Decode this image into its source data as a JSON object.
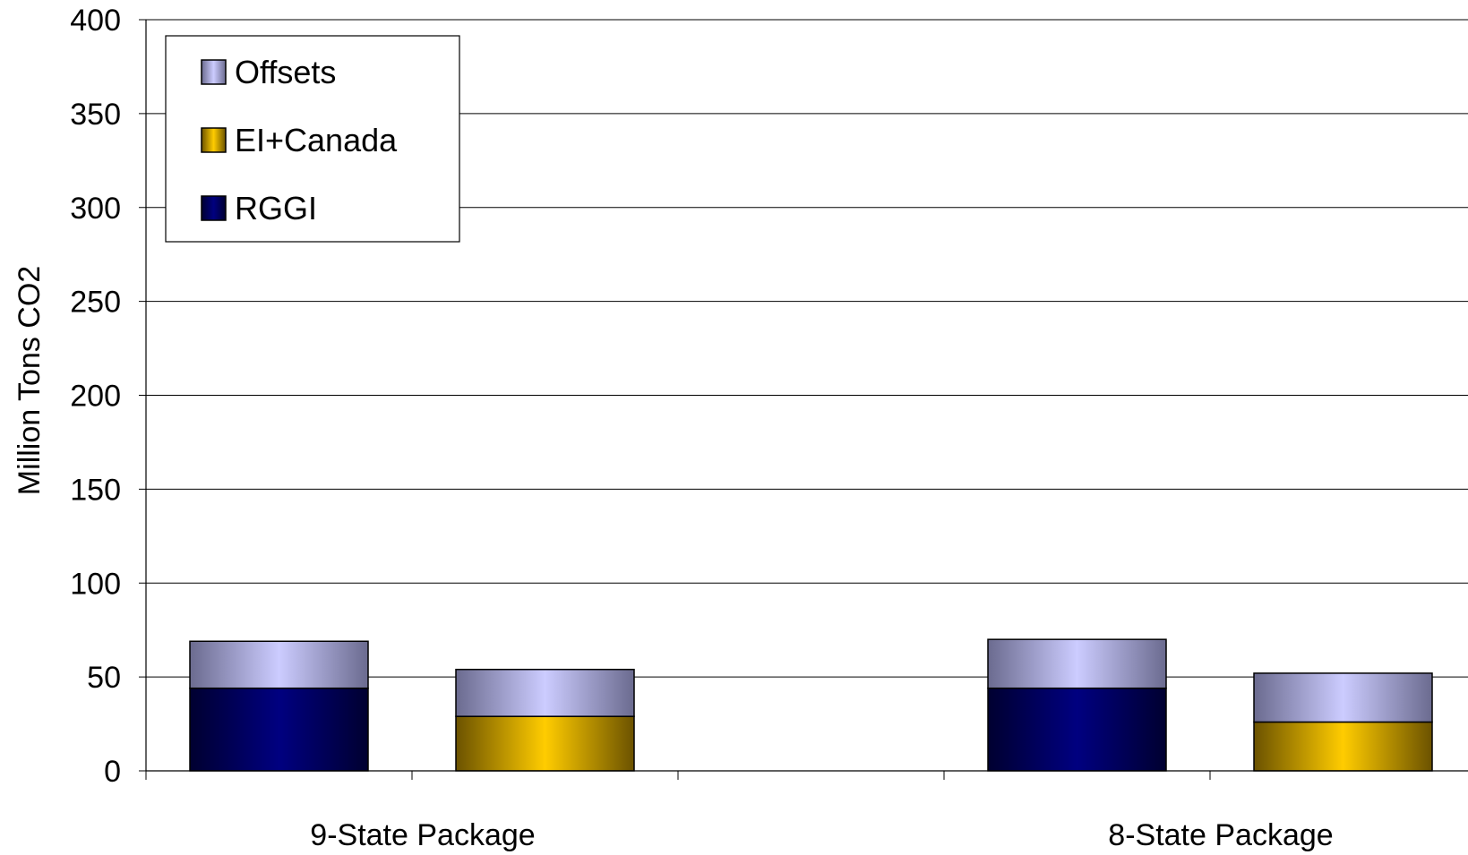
{
  "chart_data": {
    "type": "bar",
    "stacked": true,
    "ylabel": "Million Tons CO2",
    "ylim": [
      0,
      400
    ],
    "yticks": [
      "0",
      "50",
      "100",
      "150",
      "200",
      "250",
      "300",
      "350",
      "400"
    ],
    "grid": true,
    "legend_position": "top-left",
    "groups": [
      {
        "label": "9-State Package",
        "bars": [
          {
            "RGGI": 44,
            "EI+Canada": 0,
            "Offsets": 25
          },
          {
            "RGGI": 0,
            "EI+Canada": 29,
            "Offsets": 25
          }
        ]
      },
      {
        "label": "8-State Package",
        "bars": [
          {
            "RGGI": 44,
            "EI+Canada": 0,
            "Offsets": 26
          },
          {
            "RGGI": 0,
            "EI+Canada": 26,
            "Offsets": 26
          }
        ]
      }
    ],
    "series": [
      {
        "name": "Offsets",
        "color": "#ccccff",
        "edge": "#6b6b8f"
      },
      {
        "name": "EI+Canada",
        "color": "#ffcc00",
        "edge": "#6b5200"
      },
      {
        "name": "RGGI",
        "color": "#000080",
        "edge": "#000030"
      }
    ]
  }
}
